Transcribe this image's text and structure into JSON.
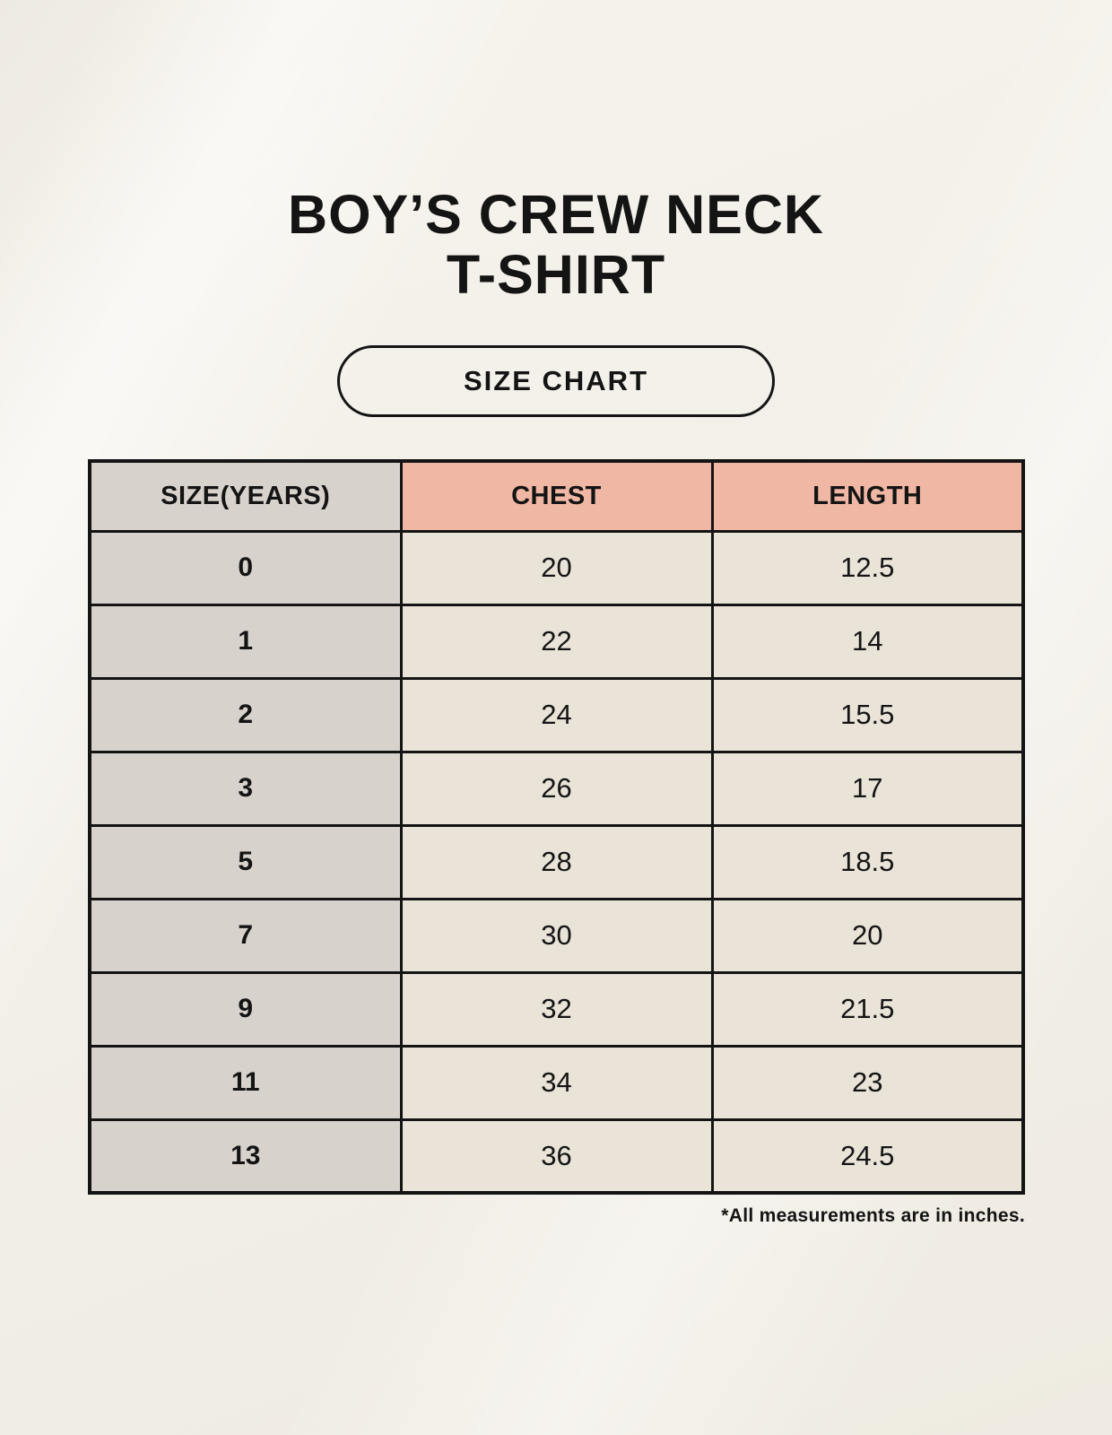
{
  "page": {
    "title_line1": "BOY’S CREW NECK",
    "title_line2": "T-SHIRT",
    "badge_label": "SIZE CHART",
    "footnote": "*All measurements are in inches."
  },
  "colors": {
    "page_bg": "#f2efe8",
    "accent_salmon": "#f0b7a4",
    "size_col_bg": "#d8d2cd",
    "cell_bg": "#e9e3d8",
    "border": "#141414",
    "text": "#141414"
  },
  "table": {
    "headers": {
      "size": "SIZE(YEARS)",
      "chest": "CHEST",
      "length": "LENGTH"
    },
    "rows": [
      {
        "size": "0",
        "chest": "20",
        "length": "12.5"
      },
      {
        "size": "1",
        "chest": "22",
        "length": "14"
      },
      {
        "size": "2",
        "chest": "24",
        "length": "15.5"
      },
      {
        "size": "3",
        "chest": "26",
        "length": "17"
      },
      {
        "size": "5",
        "chest": "28",
        "length": "18.5"
      },
      {
        "size": "7",
        "chest": "30",
        "length": "20"
      },
      {
        "size": "9",
        "chest": "32",
        "length": "21.5"
      },
      {
        "size": "11",
        "chest": "34",
        "length": "23"
      },
      {
        "size": "13",
        "chest": "36",
        "length": "24.5"
      }
    ]
  },
  "chart_data": {
    "type": "table",
    "title": "BOY’S CREW NECK T-SHIRT — SIZE CHART",
    "columns": [
      "SIZE(YEARS)",
      "CHEST",
      "LENGTH"
    ],
    "rows": [
      [
        "0",
        "20",
        "12.5"
      ],
      [
        "1",
        "22",
        "14"
      ],
      [
        "2",
        "24",
        "15.5"
      ],
      [
        "3",
        "26",
        "17"
      ],
      [
        "5",
        "28",
        "18.5"
      ],
      [
        "7",
        "30",
        "20"
      ],
      [
        "9",
        "32",
        "21.5"
      ],
      [
        "11",
        "34",
        "23"
      ],
      [
        "13",
        "36",
        "24.5"
      ]
    ],
    "units": "inches"
  }
}
